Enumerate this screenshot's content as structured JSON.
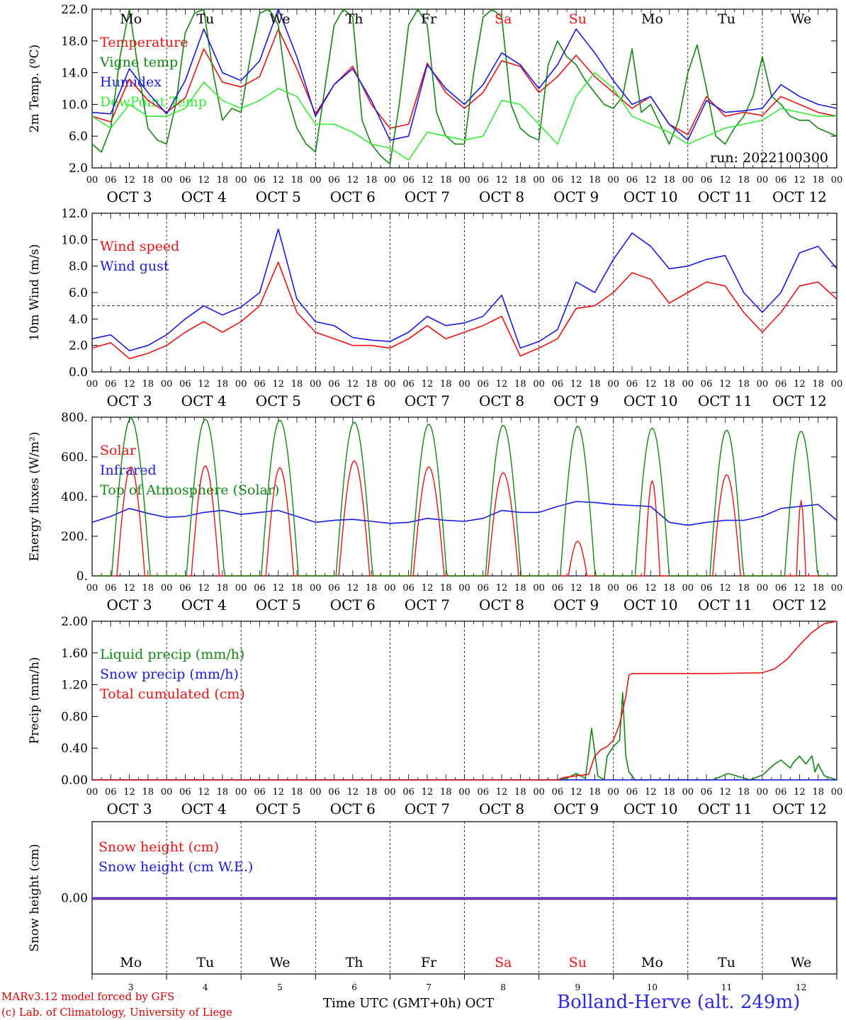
{
  "colors": {
    "red": "#ee1111",
    "darkgreen": "#118811",
    "blue": "#1a1ae6",
    "lightgreen": "#33ee33",
    "purple": "#7a3aa0",
    "weekend": "#ee1111"
  },
  "days": [
    {
      "abbr": "Mo",
      "date": "OCT  3",
      "num": "3",
      "weekend": false
    },
    {
      "abbr": "Tu",
      "date": "OCT  4",
      "num": "4",
      "weekend": false
    },
    {
      "abbr": "We",
      "date": "OCT  5",
      "num": "5",
      "weekend": false
    },
    {
      "abbr": "Th",
      "date": "OCT  6",
      "num": "6",
      "weekend": false
    },
    {
      "abbr": "Fr",
      "date": "OCT  7",
      "num": "7",
      "weekend": false
    },
    {
      "abbr": "Sa",
      "date": "OCT  8",
      "num": "8",
      "weekend": true
    },
    {
      "abbr": "Su",
      "date": "OCT  9",
      "num": "9",
      "weekend": true
    },
    {
      "abbr": "Mo",
      "date": "OCT 10",
      "num": "10",
      "weekend": false
    },
    {
      "abbr": "Tu",
      "date": "OCT 11",
      "num": "11",
      "weekend": false
    },
    {
      "abbr": "We",
      "date": "OCT 12",
      "num": "12",
      "weekend": false
    }
  ],
  "hour_ticks": [
    "00",
    "06",
    "12",
    "18"
  ],
  "end_tick": "00",
  "chart_data": [
    {
      "type": "line",
      "ylabel": "2m Temp. (ºC)",
      "ylim": [
        2,
        22
      ],
      "yticks": [
        "2.0",
        "6.0",
        "10.0",
        "14.0",
        "18.0",
        "22.0"
      ],
      "annotation": "run: 2022100300",
      "x_unit": "hours since Oct 3 00 UTC",
      "series": [
        {
          "name": "Temperature",
          "color": "red",
          "x": [
            0,
            6,
            12,
            18,
            24,
            30,
            36,
            42,
            48,
            54,
            60,
            66,
            72,
            78,
            84,
            90,
            96,
            102,
            108,
            114,
            120,
            126,
            132,
            138,
            144,
            150,
            156,
            162,
            168,
            174,
            180,
            186,
            192,
            198,
            204,
            210,
            216,
            222,
            228,
            234,
            240
          ],
          "values": [
            8.5,
            7.8,
            13.2,
            10.5,
            9.0,
            10.8,
            17.0,
            12.8,
            12.2,
            13.5,
            19.5,
            14.5,
            8.8,
            12.5,
            14.8,
            10.0,
            7.0,
            7.5,
            15.2,
            11.5,
            9.5,
            11.5,
            15.5,
            14.8,
            11.5,
            13.5,
            16.2,
            13.5,
            11.5,
            9.5,
            11.0,
            7.5,
            6.2,
            11.0,
            8.5,
            9.0,
            8.6,
            11.0,
            10.0,
            9.0,
            8.5
          ]
        },
        {
          "name": "Vigne temp",
          "color": "darkgreen",
          "x": [
            0,
            3,
            6,
            9,
            12,
            15,
            18,
            21,
            24,
            27,
            30,
            33,
            36,
            39,
            42,
            45,
            48,
            51,
            54,
            57,
            60,
            63,
            66,
            69,
            72,
            75,
            78,
            81,
            84,
            87,
            90,
            93,
            96,
            99,
            102,
            105,
            108,
            111,
            114,
            117,
            120,
            123,
            126,
            129,
            132,
            135,
            138,
            141,
            144,
            147,
            150,
            153,
            156,
            159,
            162,
            165,
            168,
            171,
            174,
            177,
            180,
            183,
            186,
            189,
            192,
            195,
            198,
            201,
            204,
            207,
            210,
            213,
            216,
            219,
            222,
            225,
            228,
            231,
            234,
            237,
            240
          ],
          "values": [
            5.0,
            4.0,
            7.0,
            16.0,
            22.0,
            14.0,
            7.0,
            5.5,
            5.0,
            10.0,
            19.0,
            21.5,
            22.0,
            14.0,
            8.0,
            9.5,
            9.0,
            16.0,
            21.5,
            22.0,
            20.0,
            11.0,
            7.0,
            5.0,
            4.0,
            12.0,
            20.0,
            22.0,
            21.0,
            8.0,
            5.0,
            3.5,
            2.5,
            10.0,
            20.0,
            22.0,
            20.0,
            9.0,
            6.0,
            5.0,
            5.0,
            14.0,
            21.0,
            22.0,
            21.0,
            10.0,
            7.0,
            6.0,
            5.5,
            15.0,
            18.0,
            16.0,
            15.0,
            13.0,
            11.5,
            10.0,
            9.5,
            11.0,
            17.0,
            9.0,
            10.0,
            7.5,
            5.0,
            8.0,
            14.0,
            17.5,
            12.0,
            6.0,
            5.0,
            7.0,
            8.5,
            11.0,
            16.0,
            11.0,
            10.0,
            8.5,
            8.0,
            8.0,
            7.0,
            6.5,
            6.0
          ]
        },
        {
          "name": "Humidex",
          "color": "blue",
          "x": [
            0,
            6,
            12,
            18,
            24,
            30,
            36,
            42,
            48,
            54,
            60,
            66,
            72,
            78,
            84,
            90,
            96,
            102,
            108,
            114,
            120,
            126,
            132,
            138,
            144,
            150,
            156,
            162,
            168,
            174,
            180,
            186,
            192,
            198,
            204,
            210,
            216,
            222,
            228,
            234,
            240
          ],
          "values": [
            9.0,
            8.8,
            14.5,
            11.5,
            8.8,
            13.0,
            19.5,
            14.0,
            13.0,
            15.5,
            22.0,
            16.0,
            8.5,
            12.5,
            14.5,
            10.5,
            5.5,
            6.0,
            15.0,
            12.0,
            10.0,
            12.5,
            16.5,
            15.0,
            12.0,
            15.0,
            19.5,
            16.5,
            13.0,
            10.0,
            11.0,
            7.5,
            5.5,
            10.5,
            9.0,
            9.2,
            9.5,
            12.5,
            11.0,
            10.0,
            9.5
          ]
        },
        {
          "name": "DewPoint Temp",
          "color": "lightgreen",
          "x": [
            0,
            6,
            12,
            18,
            24,
            30,
            36,
            42,
            48,
            54,
            60,
            66,
            72,
            78,
            84,
            90,
            96,
            102,
            108,
            114,
            120,
            126,
            132,
            138,
            144,
            150,
            156,
            162,
            168,
            174,
            180,
            186,
            192,
            198,
            204,
            210,
            216,
            222,
            228,
            234,
            240
          ],
          "values": [
            8.5,
            7.0,
            10.0,
            8.5,
            8.5,
            9.5,
            12.8,
            10.5,
            9.5,
            10.5,
            12.0,
            11.0,
            7.5,
            7.5,
            6.5,
            5.0,
            4.5,
            3.0,
            6.5,
            6.0,
            5.5,
            6.0,
            10.5,
            10.0,
            7.5,
            5.0,
            11.0,
            14.0,
            12.0,
            8.5,
            7.5,
            6.5,
            5.0,
            6.0,
            7.0,
            7.5,
            8.0,
            9.5,
            9.0,
            8.5,
            8.5
          ]
        }
      ]
    },
    {
      "type": "line",
      "ylabel": "10m Wind (m/s)",
      "ylim": [
        0,
        12
      ],
      "yticks": [
        "0.0",
        "2.0",
        "4.0",
        "6.0",
        "8.0",
        "10.0",
        "12.0"
      ],
      "reference_line": 5,
      "series": [
        {
          "name": "Wind speed",
          "color": "red",
          "x": [
            0,
            6,
            12,
            18,
            24,
            30,
            36,
            42,
            48,
            54,
            60,
            66,
            72,
            78,
            84,
            90,
            96,
            102,
            108,
            114,
            120,
            126,
            132,
            138,
            144,
            150,
            156,
            162,
            168,
            174,
            180,
            186,
            192,
            198,
            204,
            210,
            216,
            222,
            228,
            234,
            240
          ],
          "values": [
            1.8,
            2.2,
            1.0,
            1.4,
            2.0,
            3.0,
            3.8,
            3.0,
            3.8,
            5.0,
            8.3,
            4.5,
            3.0,
            2.5,
            2.0,
            2.0,
            1.8,
            2.5,
            3.5,
            2.5,
            3.0,
            3.5,
            4.2,
            1.2,
            1.8,
            2.5,
            4.8,
            5.0,
            6.0,
            7.5,
            7.0,
            5.2,
            6.0,
            6.8,
            6.5,
            4.5,
            3.0,
            4.5,
            6.5,
            6.8,
            5.5
          ]
        },
        {
          "name": "Wind gust",
          "color": "blue",
          "x": [
            0,
            6,
            12,
            18,
            24,
            30,
            36,
            42,
            48,
            54,
            60,
            66,
            72,
            78,
            84,
            90,
            96,
            102,
            108,
            114,
            120,
            126,
            132,
            138,
            144,
            150,
            156,
            162,
            168,
            174,
            180,
            186,
            192,
            198,
            204,
            210,
            216,
            222,
            228,
            234,
            240
          ],
          "values": [
            2.5,
            2.8,
            1.6,
            2.0,
            2.8,
            4.0,
            5.0,
            4.3,
            4.9,
            6.0,
            10.8,
            5.5,
            3.8,
            3.5,
            2.6,
            2.4,
            2.3,
            3.0,
            4.2,
            3.5,
            3.7,
            4.2,
            5.8,
            1.8,
            2.3,
            3.2,
            6.8,
            6.0,
            8.5,
            10.5,
            9.5,
            7.8,
            8.0,
            8.5,
            8.8,
            6.0,
            4.5,
            6.0,
            9.0,
            9.5,
            7.8
          ]
        }
      ]
    },
    {
      "type": "line",
      "ylabel": "Energy fluxes (W/m²)",
      "ylim": [
        0,
        800
      ],
      "yticks": [
        "0.",
        "200.",
        "400.",
        "600.",
        "800."
      ],
      "series": [
        {
          "name": "Solar",
          "color": "red",
          "kind": "diurnal",
          "peaks": [
            550,
            555,
            545,
            580,
            550,
            520,
            175,
            480,
            510,
            380
          ],
          "half_width": [
            4.5,
            4.5,
            4.5,
            5.0,
            5.0,
            5.0,
            3.0,
            2.5,
            4.5,
            1.5
          ]
        },
        {
          "name": "Infrared",
          "color": "blue",
          "x": [
            0,
            6,
            12,
            18,
            24,
            30,
            36,
            42,
            48,
            54,
            60,
            66,
            72,
            78,
            84,
            90,
            96,
            102,
            108,
            114,
            120,
            126,
            132,
            138,
            144,
            150,
            156,
            162,
            168,
            174,
            180,
            186,
            192,
            198,
            204,
            210,
            216,
            222,
            228,
            234,
            240
          ],
          "values": [
            270,
            300,
            340,
            315,
            295,
            300,
            320,
            330,
            310,
            320,
            330,
            300,
            270,
            280,
            285,
            275,
            265,
            270,
            290,
            280,
            275,
            290,
            330,
            320,
            320,
            350,
            375,
            370,
            360,
            355,
            350,
            270,
            255,
            270,
            280,
            280,
            300,
            340,
            350,
            360,
            280
          ]
        },
        {
          "name": "Top of Atmosphere (Solar)",
          "color": "darkgreen",
          "kind": "diurnal",
          "peaks": [
            795,
            790,
            785,
            775,
            765,
            760,
            755,
            745,
            735,
            730
          ],
          "half_width": [
            6.2,
            6.1,
            6.0,
            5.9,
            5.8,
            5.7,
            5.6,
            5.5,
            5.4,
            5.3
          ]
        }
      ]
    },
    {
      "type": "line",
      "ylabel": "Precip (mm/h)",
      "ylim": [
        0,
        2
      ],
      "yticks": [
        "0.00",
        "0.40",
        "0.80",
        "1.20",
        "1.60",
        "2.00"
      ],
      "series": [
        {
          "name": "Liquid precip (mm/h)",
          "color": "darkgreen",
          "x": [
            0,
            150,
            153,
            156,
            159,
            161,
            163,
            165,
            166,
            168,
            170,
            171,
            172,
            173,
            175,
            178,
            185,
            200,
            205,
            212,
            216,
            220,
            222,
            225,
            226,
            228,
            230,
            232,
            233,
            234,
            236,
            240
          ],
          "values": [
            0,
            0,
            0.02,
            0.08,
            0.02,
            0.65,
            0.05,
            0.0,
            0.3,
            0.42,
            0.5,
            1.1,
            0.3,
            0.1,
            0.0,
            0.0,
            0.0,
            0.0,
            0.08,
            0.0,
            0.06,
            0.2,
            0.25,
            0.15,
            0.22,
            0.3,
            0.2,
            0.3,
            0.1,
            0.2,
            0.05,
            0.0
          ]
        },
        {
          "name": "Snow precip (mm/h)",
          "color": "blue",
          "x": [
            0,
            240
          ],
          "values": [
            0,
            0
          ]
        },
        {
          "name": "Total cumulated (cm)",
          "color": "red",
          "x": [
            0,
            150,
            152,
            160,
            162,
            164,
            166,
            168,
            170,
            172,
            173,
            174,
            176,
            180,
            200,
            216,
            220,
            224,
            228,
            232,
            236,
            240
          ],
          "values": [
            0,
            0,
            0.03,
            0.07,
            0.3,
            0.38,
            0.42,
            0.5,
            0.7,
            1.05,
            1.32,
            1.34,
            1.34,
            1.34,
            1.34,
            1.35,
            1.4,
            1.52,
            1.7,
            1.86,
            1.97,
            2.0
          ]
        }
      ]
    },
    {
      "type": "line",
      "ylabel": "Snow height (cm)",
      "ylim": [
        -1,
        1
      ],
      "yticks": [
        "0.00"
      ],
      "series": [
        {
          "name": "Snow height (cm)",
          "color": "red",
          "x": [
            0,
            240
          ],
          "values": [
            0,
            0
          ]
        },
        {
          "name": "Snow height (cm W.E.)",
          "color": "blue",
          "x": [
            0,
            240
          ],
          "values": [
            0,
            0
          ]
        }
      ]
    }
  ],
  "footer": {
    "credit_line1": "MARv3.12 model forced by GFS",
    "credit_line2": "(c) Lab. of Climatology, University of Liege",
    "xtitle": "Time UTC (GMT+0h) OCT",
    "station": "Bolland-Herve (alt. 249m)"
  }
}
